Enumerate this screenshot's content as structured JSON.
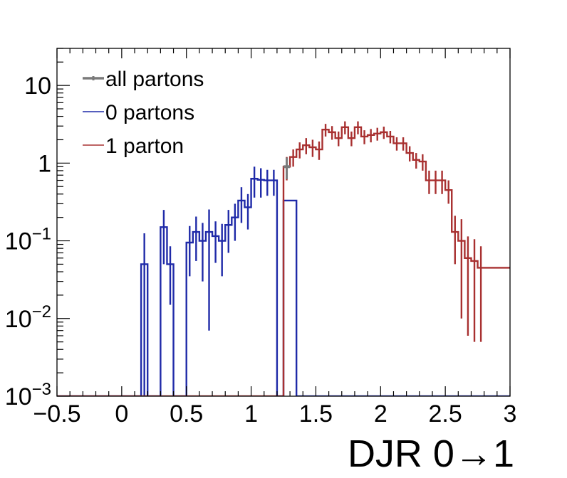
{
  "chart_data": {
    "type": "histogram",
    "xlabel": "DJR 0→1",
    "ylabel": "",
    "xlim": [
      -0.5,
      3.0
    ],
    "ylim": [
      0.001,
      30
    ],
    "yscale": "log",
    "grid": false,
    "legend_position": "top-left",
    "x_ticks": [
      {
        "value": -0.5,
        "label": "−0.5"
      },
      {
        "value": 0,
        "label": "0"
      },
      {
        "value": 0.5,
        "label": "0.5"
      },
      {
        "value": 1,
        "label": "1"
      },
      {
        "value": 1.5,
        "label": "1.5"
      },
      {
        "value": 2,
        "label": "2"
      },
      {
        "value": 2.5,
        "label": "2.5"
      },
      {
        "value": 3,
        "label": "3"
      }
    ],
    "y_ticks": [
      {
        "value": 10,
        "base": "10",
        "exp": ""
      },
      {
        "value": 1,
        "base": "1",
        "exp": ""
      },
      {
        "value": 0.1,
        "base": "10",
        "exp": "−1"
      },
      {
        "value": 0.01,
        "base": "10",
        "exp": "−2"
      },
      {
        "value": 0.001,
        "base": "10",
        "exp": "−3"
      }
    ],
    "bin_width": 0.05,
    "series": [
      {
        "name": "all partons",
        "color": "#7a7a7a",
        "style": "step",
        "bins": [
          {
            "x": 1.25,
            "y": 0.9,
            "err": 0.28
          }
        ]
      },
      {
        "name": "0 partons",
        "color": "#1f2aa8",
        "style": "step",
        "bins": [
          {
            "x": 0.15,
            "y": 0.05,
            "err": 0.075
          },
          {
            "x": 0.3,
            "y": 0.15,
            "err": 0.1
          },
          {
            "x": 0.35,
            "y": 0.05,
            "err": 0.035
          },
          {
            "x": 0.5,
            "y": 0.095,
            "err": 0.06
          },
          {
            "x": 0.55,
            "y": 0.13,
            "err": 0.075
          },
          {
            "x": 0.6,
            "y": 0.1,
            "err": 0.07
          },
          {
            "x": 0.65,
            "y": 0.13,
            "err": 0.123
          },
          {
            "x": 0.7,
            "y": 0.115,
            "err": 0.063
          },
          {
            "x": 0.75,
            "y": 0.1,
            "err": 0.065
          },
          {
            "x": 0.8,
            "y": 0.16,
            "err": 0.09
          },
          {
            "x": 0.85,
            "y": 0.2,
            "err": 0.1
          },
          {
            "x": 0.9,
            "y": 0.33,
            "err": 0.16
          },
          {
            "x": 0.95,
            "y": 0.27,
            "err": 0.13
          },
          {
            "x": 1.0,
            "y": 0.63,
            "err": 0.27
          },
          {
            "x": 1.05,
            "y": 0.61,
            "err": 0.25
          },
          {
            "x": 1.1,
            "y": 0.6,
            "err": 0.22
          },
          {
            "x": 1.15,
            "y": 0.6,
            "err": 0.22
          },
          {
            "x": 1.25,
            "y": 0.33,
            "err": 0.0
          },
          {
            "x": 1.3,
            "y": 0.33,
            "err": 0.0
          }
        ]
      },
      {
        "name": "1 parton",
        "color": "#a83030",
        "style": "step",
        "bins": [
          {
            "x": 1.25,
            "y": 0.9,
            "err": 0.3
          },
          {
            "x": 1.3,
            "y": 1.2,
            "err": 0.3
          },
          {
            "x": 1.35,
            "y": 1.5,
            "err": 0.35
          },
          {
            "x": 1.4,
            "y": 1.7,
            "err": 0.4
          },
          {
            "x": 1.45,
            "y": 1.6,
            "err": 0.4
          },
          {
            "x": 1.5,
            "y": 1.5,
            "err": 0.4
          },
          {
            "x": 1.55,
            "y": 2.7,
            "err": 0.5
          },
          {
            "x": 1.6,
            "y": 2.5,
            "err": 0.5
          },
          {
            "x": 1.65,
            "y": 2.1,
            "err": 0.45
          },
          {
            "x": 1.7,
            "y": 2.9,
            "err": 0.55
          },
          {
            "x": 1.75,
            "y": 2.1,
            "err": 0.45
          },
          {
            "x": 1.8,
            "y": 2.9,
            "err": 0.55
          },
          {
            "x": 1.85,
            "y": 2.2,
            "err": 0.45
          },
          {
            "x": 1.9,
            "y": 2.3,
            "err": 0.45
          },
          {
            "x": 1.95,
            "y": 2.4,
            "err": 0.45
          },
          {
            "x": 2.0,
            "y": 2.5,
            "err": 0.45
          },
          {
            "x": 2.05,
            "y": 2.2,
            "err": 0.4
          },
          {
            "x": 2.1,
            "y": 1.8,
            "err": 0.35
          },
          {
            "x": 2.15,
            "y": 1.8,
            "err": 0.35
          },
          {
            "x": 2.2,
            "y": 1.35,
            "err": 0.3
          },
          {
            "x": 2.25,
            "y": 1.1,
            "err": 0.25
          },
          {
            "x": 2.3,
            "y": 1.05,
            "err": 0.25
          },
          {
            "x": 2.35,
            "y": 0.6,
            "err": 0.2
          },
          {
            "x": 2.4,
            "y": 0.6,
            "err": 0.2
          },
          {
            "x": 2.45,
            "y": 0.6,
            "err": 0.2
          },
          {
            "x": 2.5,
            "y": 0.45,
            "err": 0.15
          },
          {
            "x": 2.55,
            "y": 0.13,
            "err": 0.08
          },
          {
            "x": 2.6,
            "y": 0.1,
            "err": 0.09
          },
          {
            "x": 2.65,
            "y": 0.06,
            "err": 0.054
          },
          {
            "x": 2.7,
            "y": 0.055,
            "err": 0.05
          },
          {
            "x": 2.75,
            "y": 0.045,
            "err": 0.04
          }
        ]
      }
    ],
    "baseline_step": {
      "x_start": -0.5,
      "x_end": 3.0,
      "y": 0.001
    }
  }
}
